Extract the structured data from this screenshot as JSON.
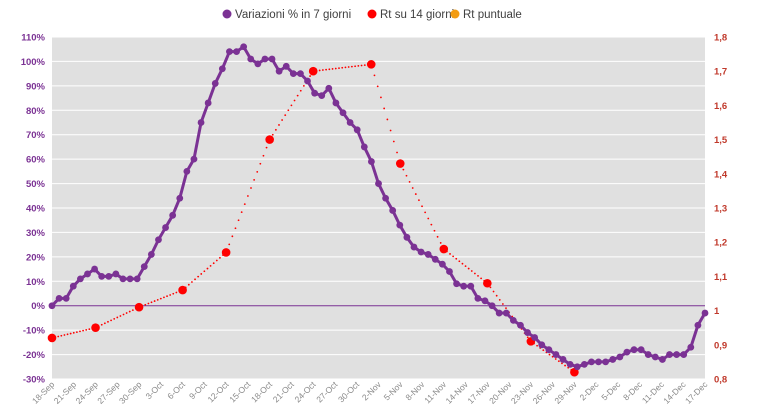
{
  "chart_data": {
    "type": "line",
    "title": "",
    "legend_position": "top-center",
    "grid": true,
    "colors": {
      "plot_background": "#e0e0e0",
      "gridline": "#ffffff",
      "zero_line": "#7b3294",
      "variazioni": "#7b3294",
      "rt14": "#ff0000",
      "rt_puntuale": "#f39c12",
      "left_axis_text": "#7b3294",
      "right_axis_text": "#c0392b"
    },
    "legend": [
      {
        "key": "variazioni",
        "label": "Variazioni % in 7 giorni"
      },
      {
        "key": "rt14",
        "label": "Rt su 14 giorni"
      },
      {
        "key": "rt_puntuale",
        "label": "Rt puntuale"
      }
    ],
    "left_axis": {
      "ylim": [
        -30,
        110
      ],
      "step": 10,
      "tick_labels": [
        "-30%",
        "-20%",
        "-10%",
        "0%",
        "10%",
        "20%",
        "30%",
        "40%",
        "50%",
        "60%",
        "70%",
        "80%",
        "90%",
        "100%",
        "110%"
      ]
    },
    "right_axis": {
      "ylim": [
        0.8,
        1.8
      ],
      "tick_values": [
        0.8,
        0.9,
        1.0,
        1.1,
        1.2,
        1.3,
        1.4,
        1.5,
        1.6,
        1.7,
        1.8
      ],
      "tick_labels": [
        "0,8",
        "0,9",
        "1",
        "1,1",
        "1,2",
        "1,3",
        "1,4",
        "1,5",
        "1,6",
        "1,7",
        "1,8"
      ]
    },
    "x_range_days": [
      0,
      90
    ],
    "x_ticks": [
      {
        "day": 0,
        "label": "18-Sep"
      },
      {
        "day": 3,
        "label": "21-Sep"
      },
      {
        "day": 6,
        "label": "24-Sep"
      },
      {
        "day": 9,
        "label": "27-Sep"
      },
      {
        "day": 12,
        "label": "30-Sep"
      },
      {
        "day": 15,
        "label": "3-Oct"
      },
      {
        "day": 18,
        "label": "6-Oct"
      },
      {
        "day": 21,
        "label": "9-Oct"
      },
      {
        "day": 24,
        "label": "12-Oct"
      },
      {
        "day": 27,
        "label": "15-Oct"
      },
      {
        "day": 30,
        "label": "18-Oct"
      },
      {
        "day": 33,
        "label": "21-Oct"
      },
      {
        "day": 36,
        "label": "24-Oct"
      },
      {
        "day": 39,
        "label": "27-Oct"
      },
      {
        "day": 42,
        "label": "30-Oct"
      },
      {
        "day": 45,
        "label": "2-Nov"
      },
      {
        "day": 48,
        "label": "5-Nov"
      },
      {
        "day": 51,
        "label": "8-Nov"
      },
      {
        "day": 54,
        "label": "11-Nov"
      },
      {
        "day": 57,
        "label": "14-Nov"
      },
      {
        "day": 60,
        "label": "17-Nov"
      },
      {
        "day": 63,
        "label": "20-Nov"
      },
      {
        "day": 66,
        "label": "23-Nov"
      },
      {
        "day": 69,
        "label": "26-Nov"
      },
      {
        "day": 72,
        "label": "29-Nov"
      },
      {
        "day": 75,
        "label": "2-Dec"
      },
      {
        "day": 78,
        "label": "5-Dec"
      },
      {
        "day": 81,
        "label": "8-Dec"
      },
      {
        "day": 84,
        "label": "11-Dec"
      },
      {
        "day": 87,
        "label": "14-Dec"
      },
      {
        "day": 90,
        "label": "17-Dec"
      }
    ],
    "series": [
      {
        "key": "variazioni",
        "name": "Variazioni % in 7 giorni",
        "axis": "left",
        "values": [
          0,
          3,
          3,
          8,
          11,
          13,
          15,
          12,
          12,
          13,
          11,
          11,
          11,
          16,
          21,
          27,
          32,
          37,
          44,
          55,
          60,
          75,
          83,
          91,
          97,
          104,
          104,
          106,
          101,
          99,
          101,
          101,
          96,
          98,
          95,
          95,
          92,
          87,
          86,
          89,
          83,
          79,
          75,
          72,
          65,
          59,
          50,
          44,
          39,
          33,
          28,
          24,
          22,
          21,
          19,
          17,
          14,
          9,
          8,
          8,
          3,
          2,
          0,
          -3,
          -3,
          -6,
          -8,
          -11,
          -13,
          -16,
          -18,
          -20,
          -22,
          -24,
          -25,
          -24,
          -23,
          -23,
          -23,
          -22,
          -21,
          -19,
          -18,
          -18,
          -20,
          -21,
          -22,
          -20,
          -20,
          -20,
          -17,
          -8,
          -3
        ]
      },
      {
        "key": "rt14",
        "name": "Rt su 14 giorni",
        "axis": "right",
        "points": [
          {
            "day": 0,
            "value": 0.92
          },
          {
            "day": 6,
            "value": 0.95
          },
          {
            "day": 12,
            "value": 1.01
          },
          {
            "day": 18,
            "value": 1.06
          },
          {
            "day": 24,
            "value": 1.17
          },
          {
            "day": 30,
            "value": 1.5
          },
          {
            "day": 36,
            "value": 1.7
          },
          {
            "day": 44,
            "value": 1.72
          },
          {
            "day": 48,
            "value": 1.43
          },
          {
            "day": 54,
            "value": 1.18
          },
          {
            "day": 60,
            "value": 1.08
          },
          {
            "day": 66,
            "value": 0.91
          },
          {
            "day": 72,
            "value": 0.82
          }
        ]
      },
      {
        "key": "rt_puntuale",
        "name": "Rt puntuale",
        "axis": "right",
        "values": []
      }
    ]
  }
}
